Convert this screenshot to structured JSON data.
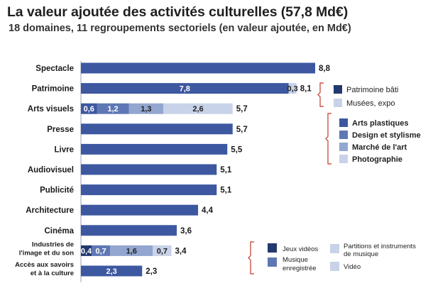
{
  "title": "La valeur ajoutée des activités culturelles (57,8 Md€)",
  "subtitle": "18 domaines, 11 regroupements sectoriels (en valeur ajoutée, en Md€)",
  "colors": {
    "bar": "#3d58a0",
    "dark_navy": "#22396f",
    "mid_blue": "#5f78b5",
    "light_blue": "#93a6cf",
    "pale_blue": "#c8d2e8",
    "bracket": "#c0392b"
  },
  "chart_data": {
    "type": "bar",
    "orientation": "horizontal",
    "stacked": true,
    "title": "La valeur ajoutée des activités culturelles (57,8 Md€)",
    "unit": "Md€",
    "xlim": [
      0,
      8.8
    ],
    "categories": [
      {
        "label": "Spectacle",
        "total_label": "8,8",
        "segments": [
          {
            "value": 8.8,
            "label": "",
            "color": "bar"
          }
        ]
      },
      {
        "label": "Patrimoine",
        "total_label": "8,1",
        "segments": [
          {
            "value": 7.8,
            "label": "7,8",
            "color": "bar"
          },
          {
            "value": 0.3,
            "label": "0,3",
            "color": "pale_blue"
          }
        ]
      },
      {
        "label": "Arts visuels",
        "total_label": "5,7",
        "segments": [
          {
            "value": 0.6,
            "label": "0,6",
            "color": "bar"
          },
          {
            "value": 1.2,
            "label": "1,2",
            "color": "mid_blue"
          },
          {
            "value": 1.3,
            "label": "1,3",
            "color": "light_blue"
          },
          {
            "value": 2.6,
            "label": "2,6",
            "color": "pale_blue"
          }
        ]
      },
      {
        "label": "Presse",
        "total_label": "5,7",
        "segments": [
          {
            "value": 5.7,
            "label": "",
            "color": "bar"
          }
        ]
      },
      {
        "label": "Livre",
        "total_label": "5,5",
        "segments": [
          {
            "value": 5.5,
            "label": "",
            "color": "bar"
          }
        ]
      },
      {
        "label": "Audiovisuel",
        "total_label": "5,1",
        "segments": [
          {
            "value": 5.1,
            "label": "",
            "color": "bar"
          }
        ]
      },
      {
        "label": "Publicité",
        "total_label": "5,1",
        "segments": [
          {
            "value": 5.1,
            "label": "",
            "color": "bar"
          }
        ]
      },
      {
        "label": "Architecture",
        "total_label": "4,4",
        "segments": [
          {
            "value": 4.4,
            "label": "",
            "color": "bar"
          }
        ]
      },
      {
        "label": "Cinéma",
        "total_label": "3,6",
        "segments": [
          {
            "value": 3.6,
            "label": "",
            "color": "bar"
          }
        ]
      },
      {
        "label": "Industries de l'image et du son",
        "label_lines": [
          "Industries de",
          "l'image et du son"
        ],
        "total_label": "3,4",
        "segments": [
          {
            "value": 0.4,
            "label": "0,4",
            "color": "dark_navy"
          },
          {
            "value": 0.7,
            "label": "0,7",
            "color": "mid_blue"
          },
          {
            "value": 1.6,
            "label": "1,6",
            "color": "light_blue"
          },
          {
            "value": 0.7,
            "label": "0,7",
            "color": "pale_blue"
          }
        ]
      },
      {
        "label": "Accès aux savoirs et à la culture",
        "label_lines": [
          "Accès aux savoirs",
          "et à la culture"
        ],
        "total_label": "2,3",
        "segments": [
          {
            "value": 2.3,
            "label": "2,3",
            "color": "bar"
          }
        ]
      }
    ],
    "legends": [
      {
        "name": "patrimoine",
        "entries": [
          {
            "label": "Patrimoine bâti",
            "color": "dark_navy"
          },
          {
            "label": "Musées, expo",
            "color": "pale_blue"
          }
        ]
      },
      {
        "name": "arts-visuels",
        "entries": [
          {
            "label": "Arts plastiques",
            "color": "bar"
          },
          {
            "label": "Design et stylisme",
            "color": "mid_blue"
          },
          {
            "label": "Marché de l'art",
            "color": "light_blue"
          },
          {
            "label": "Photographie",
            "color": "pale_blue"
          }
        ]
      },
      {
        "name": "industries-image-son",
        "entries": [
          {
            "label": "Jeux vidéos",
            "color": "dark_navy"
          },
          {
            "label": "Partitions et instruments de musique",
            "label_lines": [
              "Partitions et instruments",
              "de musique"
            ],
            "color": "pale_blue"
          },
          {
            "label": "Musique enregistrée",
            "label_lines": [
              "Musique",
              "enregistrée"
            ],
            "color": "mid_blue"
          },
          {
            "label": "Vidéo",
            "color": "pale_blue"
          }
        ]
      }
    ]
  }
}
